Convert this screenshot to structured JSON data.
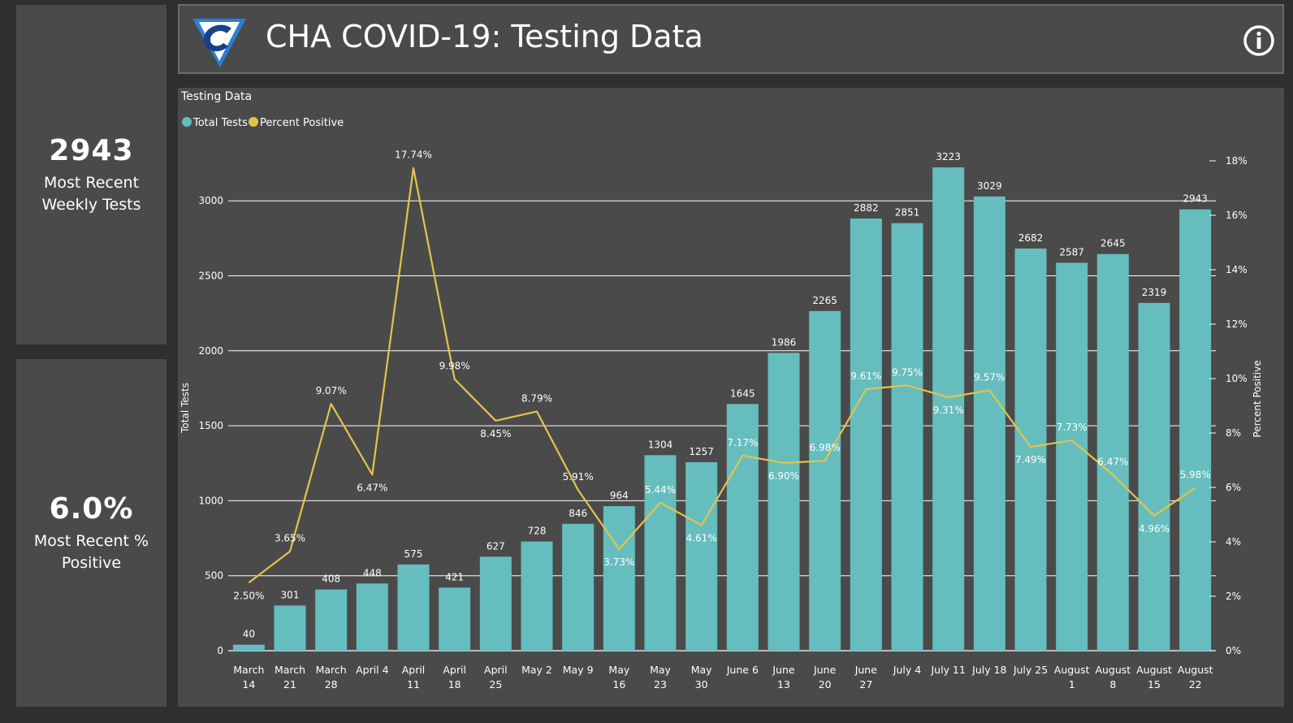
{
  "kpis": {
    "tests": {
      "value": "2943",
      "label": "Most Recent Weekly Tests"
    },
    "positive": {
      "value": "6.0%",
      "label": "Most Recent % Positive"
    }
  },
  "header": {
    "title": "CHA COVID-19: Testing Data",
    "logo_icon": "cha-logo-icon",
    "info_icon": "info-icon"
  },
  "colors": {
    "bar": "#66bdbd",
    "line": "#e3c44a",
    "panel": "#4a4a4a",
    "background": "#2f2f2f"
  },
  "chart_data": {
    "type": "bar",
    "title": "Testing Data",
    "ylabel": "Total Tests",
    "y2label": "Percent Positive",
    "ylim": [
      0,
      3300
    ],
    "y2lim": [
      0,
      18
    ],
    "yticks": [
      0,
      500,
      1000,
      1500,
      2000,
      2500,
      3000
    ],
    "y2ticks": [
      "0%",
      "2%",
      "4%",
      "6%",
      "8%",
      "10%",
      "12%",
      "14%",
      "16%",
      "18%"
    ],
    "grid": true,
    "legend_position": "top-left",
    "categories": [
      [
        "March",
        "14"
      ],
      [
        "March",
        "21"
      ],
      [
        "March",
        "28"
      ],
      [
        "April 4"
      ],
      [
        "April",
        "11"
      ],
      [
        "April",
        "18"
      ],
      [
        "April",
        "25"
      ],
      [
        "May 2"
      ],
      [
        "May 9"
      ],
      [
        "May",
        "16"
      ],
      [
        "May",
        "23"
      ],
      [
        "May",
        "30"
      ],
      [
        "June 6"
      ],
      [
        "June",
        "13"
      ],
      [
        "June",
        "20"
      ],
      [
        "June",
        "27"
      ],
      [
        "July 4"
      ],
      [
        "July 11"
      ],
      [
        "July 18"
      ],
      [
        "July 25"
      ],
      [
        "August",
        "1"
      ],
      [
        "August",
        "8"
      ],
      [
        "August",
        "15"
      ],
      [
        "August",
        "22"
      ]
    ],
    "series": [
      {
        "name": "Total Tests",
        "type": "bar",
        "values": [
          40,
          301,
          408,
          448,
          575,
          421,
          627,
          728,
          846,
          964,
          1304,
          1257,
          1645,
          1986,
          2265,
          2882,
          2851,
          3223,
          3029,
          2682,
          2587,
          2645,
          2319,
          2943
        ]
      },
      {
        "name": "Percent Positive",
        "type": "line",
        "values": [
          2.5,
          3.65,
          9.07,
          6.47,
          17.74,
          9.98,
          8.45,
          8.79,
          5.91,
          3.73,
          5.44,
          4.61,
          7.17,
          6.9,
          6.98,
          9.61,
          9.75,
          9.31,
          9.57,
          7.49,
          7.73,
          6.47,
          4.96,
          5.98
        ],
        "labels": [
          "2.50%",
          "3.65%",
          "9.07%",
          "6.47%",
          "17.74%",
          "9.98%",
          "8.45%",
          "8.79%",
          "5.91%",
          "3.73%",
          "5.44%",
          "4.61%",
          "7.17%",
          "6.90%",
          "6.98%",
          "9.61%",
          "9.75%",
          "9.31%",
          "9.57%",
          "7.49%",
          "7.73%",
          "6.47%",
          "4.96%",
          "5.98%"
        ]
      }
    ]
  }
}
